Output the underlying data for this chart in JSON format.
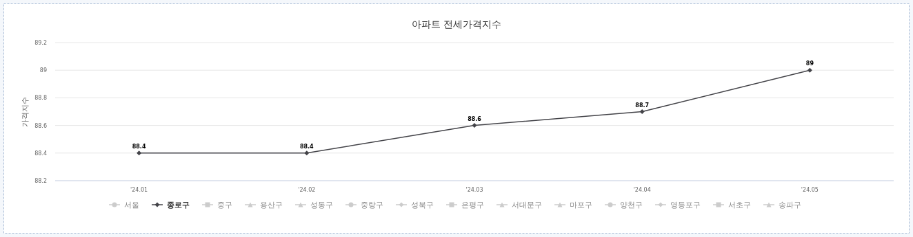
{
  "chart_data": {
    "type": "line",
    "title": "아파트 전세가격지수",
    "ylabel": "가격지수",
    "categories": [
      "'24.01",
      "'24.02",
      "'24.03",
      "'24.04",
      "'24.05"
    ],
    "series": [
      {
        "name": "서울",
        "color": "#cccccc",
        "marker": "circle",
        "values": [
          null,
          null,
          null,
          null,
          null
        ]
      },
      {
        "name": "종로구",
        "color": "#434348",
        "marker": "diamond",
        "values": [
          88.4,
          88.4,
          88.6,
          88.7,
          89
        ]
      },
      {
        "name": "중구",
        "color": "#cccccc",
        "marker": "square",
        "values": [
          null,
          null,
          null,
          null,
          null
        ]
      },
      {
        "name": "용산구",
        "color": "#cccccc",
        "marker": "triangle",
        "values": [
          null,
          null,
          null,
          null,
          null
        ]
      },
      {
        "name": "성동구",
        "color": "#cccccc",
        "marker": "triangle",
        "values": [
          null,
          null,
          null,
          null,
          null
        ]
      },
      {
        "name": "중랑구",
        "color": "#cccccc",
        "marker": "circle",
        "values": [
          null,
          null,
          null,
          null,
          null
        ]
      },
      {
        "name": "성북구",
        "color": "#cccccc",
        "marker": "diamond",
        "values": [
          null,
          null,
          null,
          null,
          null
        ]
      },
      {
        "name": "은평구",
        "color": "#cccccc",
        "marker": "square",
        "values": [
          null,
          null,
          null,
          null,
          null
        ]
      },
      {
        "name": "서대문구",
        "color": "#cccccc",
        "marker": "triangle",
        "values": [
          null,
          null,
          null,
          null,
          null
        ]
      },
      {
        "name": "마포구",
        "color": "#cccccc",
        "marker": "triangle",
        "values": [
          null,
          null,
          null,
          null,
          null
        ]
      },
      {
        "name": "양천구",
        "color": "#cccccc",
        "marker": "circle",
        "values": [
          null,
          null,
          null,
          null,
          null
        ]
      },
      {
        "name": "영등포구",
        "color": "#cccccc",
        "marker": "diamond",
        "values": [
          null,
          null,
          null,
          null,
          null
        ]
      },
      {
        "name": "서초구",
        "color": "#cccccc",
        "marker": "square",
        "values": [
          null,
          null,
          null,
          null,
          null
        ]
      },
      {
        "name": "송파구",
        "color": "#cccccc",
        "marker": "triangle",
        "values": [
          null,
          null,
          null,
          null,
          null
        ]
      }
    ],
    "ylim": [
      88.2,
      89.2
    ],
    "yticks": [
      88.2,
      88.4,
      88.6,
      88.8,
      89,
      89.2
    ],
    "grid": "y",
    "legend": "bottom",
    "data_labels": true
  }
}
